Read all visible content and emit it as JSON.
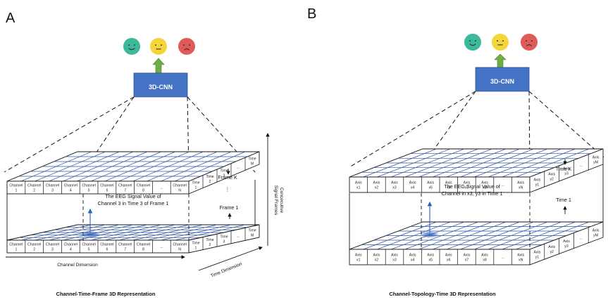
{
  "panels": [
    {
      "letter": "A",
      "cnn_label": "3D-CNN",
      "channel_labels": [
        [
          "Channel",
          "1"
        ],
        [
          "Channel",
          "2"
        ],
        [
          "Channel",
          "3"
        ],
        [
          "Channel",
          "4"
        ],
        [
          "Channel",
          "5"
        ],
        [
          "Channel",
          "6"
        ],
        [
          "Channel",
          "7"
        ],
        [
          "Channel",
          "8"
        ],
        [
          "..."
        ],
        [
          "Channel",
          "N"
        ]
      ],
      "side_labels": [
        [
          "Time",
          "1"
        ],
        [
          "Time",
          "2"
        ],
        [
          "Time",
          "3"
        ],
        [
          "..."
        ],
        [
          "Time",
          "M"
        ]
      ],
      "annotation_line1": "The EEG Signal Value of",
      "annotation_line2": "Channel 3 in Time 3 of Frame 1",
      "frame_k": "Frame K",
      "frame_1": "Frame 1",
      "dots": "⋮",
      "x_axis_label": "Channel Dimension",
      "depth_axis_label": "Time Dimension",
      "vertical_axis_line1": "Concecutive",
      "vertical_axis_line2": "Signal Frames",
      "caption": "Channel-Time-Frame 3D Representation"
    },
    {
      "letter": "B",
      "cnn_label": "3D-CNN",
      "channel_labels": [
        [
          "Axis",
          "x1"
        ],
        [
          "Axis",
          "x2"
        ],
        [
          "Axis",
          "x3"
        ],
        [
          "Axis",
          "x4"
        ],
        [
          "Axis",
          "x5"
        ],
        [
          "Axis",
          "x6"
        ],
        [
          "Axis",
          "x7"
        ],
        [
          "Axis",
          "x8"
        ],
        [
          "..."
        ],
        [
          "Axis",
          "xN"
        ]
      ],
      "side_labels": [
        [
          "Axis",
          "y1"
        ],
        [
          "Axis",
          "y2"
        ],
        [
          "Axis",
          "y3"
        ],
        [
          "..."
        ],
        [
          "Axis",
          "yM"
        ]
      ],
      "annotation_line1": "The EEG Signal Value of",
      "annotation_line2": "Channel in x3, y3 in Time 1",
      "frame_k": "Time K",
      "frame_1": "Time 1",
      "caption": "Channel-Topology-Time 3D Representation"
    }
  ],
  "colors": {
    "cnn_box": "#4472c4",
    "grid_line": "#2f55a4",
    "arrow_green": "#70ad47",
    "face_green": "#3cb89a",
    "face_yellow": "#f2d63a",
    "face_red": "#e05a5a",
    "hotspot": "#2f5fb8"
  }
}
